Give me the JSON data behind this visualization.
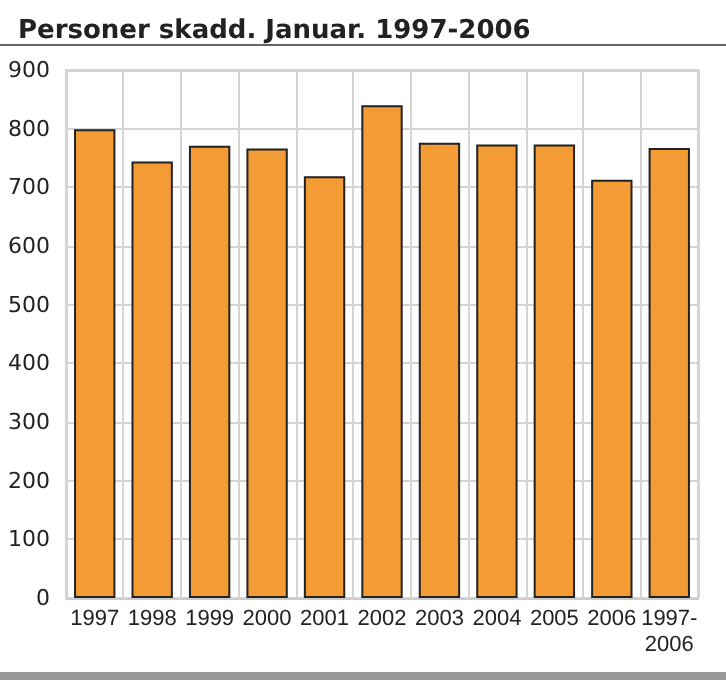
{
  "chart_data": {
    "type": "bar",
    "title": "Personer skadd. Januar. 1997-2006",
    "categories": [
      "1997",
      "1998",
      "1999",
      "2000",
      "2001",
      "2002",
      "2003",
      "2004",
      "2005",
      "2006",
      "1997-\n2006"
    ],
    "values": [
      799,
      744,
      771,
      766,
      719,
      840,
      776,
      773,
      773,
      713,
      767
    ],
    "color": "#f39c35",
    "ylim": [
      0,
      900
    ],
    "yticks": [
      0,
      100,
      200,
      300,
      400,
      500,
      600,
      700,
      800,
      900
    ],
    "grid": true
  }
}
